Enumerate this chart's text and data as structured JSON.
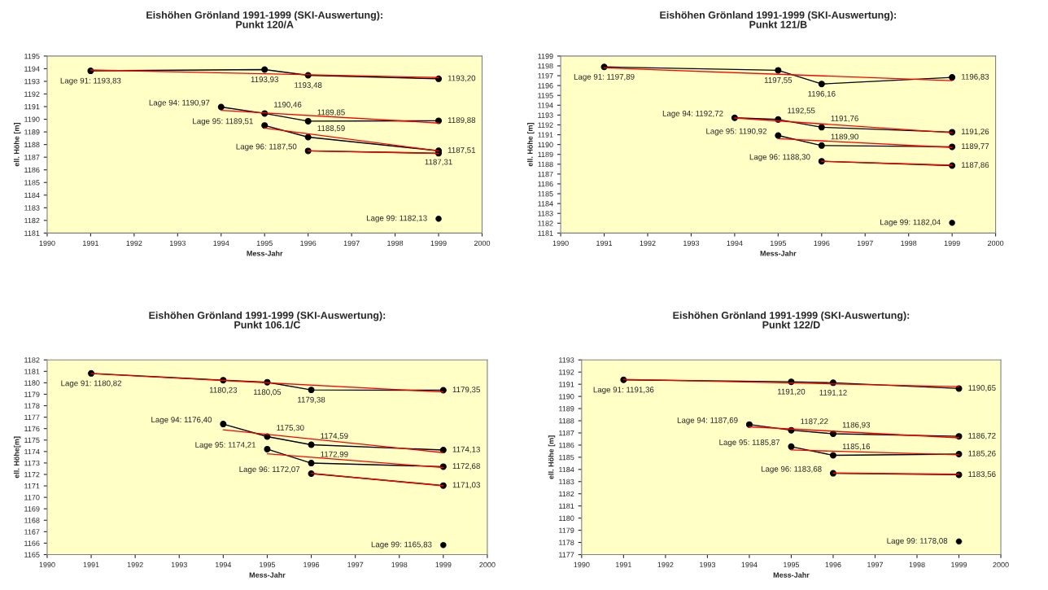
{
  "chart_data": [
    {
      "type": "line",
      "title": "Eishöhen Grönland 1991-1999 (SKI-Auswertung):",
      "subtitle": "Punkt 120/A",
      "xlabel": "Mess-Jahr",
      "ylabel": "ell. Höhe [m]",
      "xlim": [
        1990,
        2000
      ],
      "xticks": [
        1990,
        1991,
        1992,
        1993,
        1994,
        1995,
        1996,
        1997,
        1998,
        1999,
        2000
      ],
      "ylim": [
        1181,
        1195
      ],
      "yticks": [
        1181,
        1182,
        1183,
        1184,
        1185,
        1186,
        1187,
        1188,
        1189,
        1190,
        1191,
        1192,
        1193,
        1194,
        1195
      ],
      "grid": false,
      "series": [
        {
          "color": "#000000",
          "marker": "circle",
          "x": [
            1991,
            1995,
            1996,
            1999
          ],
          "values": [
            1193.83,
            1193.93,
            1193.48,
            1193.2
          ],
          "value_labels": [
            "Lage 91: 1193,83",
            "1193,93",
            "1193,48",
            "1193,20"
          ]
        },
        {
          "color": "#000000",
          "marker": "circle",
          "x": [
            1994,
            1995,
            1996,
            1999
          ],
          "values": [
            1190.97,
            1190.46,
            1189.85,
            1189.88
          ],
          "value_labels": [
            "Lage 94: 1190,97",
            "1190,46",
            "1189,85",
            "1189,88"
          ]
        },
        {
          "color": "#000000",
          "marker": "circle",
          "x": [
            1995,
            1996,
            1999
          ],
          "values": [
            1189.51,
            1188.59,
            1187.51
          ],
          "value_labels": [
            "Lage 95: 1189,51",
            "1188,59",
            "1187,51"
          ]
        },
        {
          "color": "#000000",
          "marker": "circle",
          "x": [
            1996,
            1999
          ],
          "values": [
            1187.5,
            1187.31
          ],
          "value_labels": [
            "Lage 96: 1187,50",
            "1187,31"
          ]
        },
        {
          "type": "scatter",
          "color": "#000000",
          "marker": "circle",
          "x": [
            1999
          ],
          "values": [
            1182.13
          ],
          "value_labels": [
            "Lage 99: 1182,13"
          ]
        },
        {
          "color": "#ff0000",
          "marker": "none",
          "x": [
            1991,
            1999
          ],
          "values": [
            1193.9,
            1193.3
          ]
        },
        {
          "color": "#ff0000",
          "marker": "none",
          "x": [
            1994,
            1999
          ],
          "values": [
            1190.7,
            1189.7
          ]
        },
        {
          "color": "#ff0000",
          "marker": "none",
          "x": [
            1995,
            1999
          ],
          "values": [
            1189.3,
            1187.5
          ]
        },
        {
          "color": "#ff0000",
          "marker": "none",
          "x": [
            1996,
            1999
          ],
          "values": [
            1187.5,
            1187.3
          ]
        }
      ]
    },
    {
      "type": "line",
      "title": "Eishöhen Grönland 1991-1999 (SKI-Auswertung):",
      "subtitle": "Punkt 121/B",
      "xlabel": "Mess-Jahr",
      "ylabel": "ell. Höhe [m]",
      "xlim": [
        1990,
        2000
      ],
      "xticks": [
        1990,
        1991,
        1992,
        1993,
        1994,
        1995,
        1996,
        1997,
        1998,
        1999,
        2000
      ],
      "ylim": [
        1181,
        1199
      ],
      "yticks": [
        1181,
        1182,
        1183,
        1184,
        1185,
        1186,
        1187,
        1188,
        1189,
        1190,
        1191,
        1192,
        1193,
        1194,
        1195,
        1196,
        1197,
        1198,
        1199
      ],
      "grid": false,
      "series": [
        {
          "color": "#000000",
          "marker": "circle",
          "x": [
            1991,
            1995,
            1996,
            1999
          ],
          "values": [
            1197.89,
            1197.55,
            1196.16,
            1196.83
          ],
          "value_labels": [
            "Lage 91: 1197,89",
            "1197,55",
            "1196,16",
            "1196,83"
          ]
        },
        {
          "color": "#000000",
          "marker": "circle",
          "x": [
            1994,
            1995,
            1996,
            1999
          ],
          "values": [
            1192.72,
            1192.55,
            1191.76,
            1191.26
          ],
          "value_labels": [
            "Lage 94: 1192,72",
            "1192,55",
            "1191,76",
            "1191,26"
          ]
        },
        {
          "color": "#000000",
          "marker": "circle",
          "x": [
            1995,
            1996,
            1999
          ],
          "values": [
            1190.92,
            1189.9,
            1189.77
          ],
          "value_labels": [
            "Lage 95: 1190,92",
            "1189,90",
            "1189,77"
          ]
        },
        {
          "color": "#000000",
          "marker": "circle",
          "x": [
            1996,
            1999
          ],
          "values": [
            1188.3,
            1187.86
          ],
          "value_labels": [
            "Lage 96: 1188,30",
            "1187,86"
          ]
        },
        {
          "type": "scatter",
          "color": "#000000",
          "marker": "circle",
          "x": [
            1999
          ],
          "values": [
            1182.04
          ],
          "value_labels": [
            "Lage 99: 1182,04"
          ]
        },
        {
          "color": "#ff0000",
          "marker": "none",
          "x": [
            1991,
            1999
          ],
          "values": [
            1197.8,
            1196.5
          ]
        },
        {
          "color": "#ff0000",
          "marker": "none",
          "x": [
            1994,
            1999
          ],
          "values": [
            1192.7,
            1191.2
          ]
        },
        {
          "color": "#ff0000",
          "marker": "none",
          "x": [
            1995,
            1999
          ],
          "values": [
            1190.6,
            1189.7
          ]
        },
        {
          "color": "#ff0000",
          "marker": "none",
          "x": [
            1996,
            1999
          ],
          "values": [
            1188.3,
            1187.9
          ]
        }
      ]
    },
    {
      "type": "line",
      "title": "Eishöhen Grönland 1991-1999 (SKI-Auswertung):",
      "subtitle": "Punkt 106.1/C",
      "xlabel": "Mess-Jahr",
      "ylabel": "ell. Höhe[m]",
      "xlim": [
        1990,
        2000
      ],
      "xticks": [
        1990,
        1991,
        1992,
        1993,
        1994,
        1995,
        1996,
        1997,
        1998,
        1999,
        2000
      ],
      "ylim": [
        1165,
        1182
      ],
      "yticks": [
        1165,
        1166,
        1167,
        1168,
        1169,
        1170,
        1171,
        1172,
        1173,
        1174,
        1175,
        1176,
        1177,
        1178,
        1179,
        1180,
        1181,
        1182
      ],
      "grid": false,
      "series": [
        {
          "color": "#000000",
          "marker": "circle",
          "x": [
            1991,
            1994,
            1995,
            1996,
            1999
          ],
          "values": [
            1180.82,
            1180.23,
            1180.05,
            1179.38,
            1179.35
          ],
          "value_labels": [
            "Lage 91: 1180,82",
            "1180,23",
            "1180,05",
            "1179,38",
            "1179,35"
          ]
        },
        {
          "color": "#000000",
          "marker": "circle",
          "x": [
            1994,
            1995,
            1996,
            1999
          ],
          "values": [
            1176.4,
            1175.3,
            1174.59,
            1174.13
          ],
          "value_labels": [
            "Lage 94: 1176,40",
            "1175,30",
            "1174,59",
            "1174,13"
          ]
        },
        {
          "color": "#000000",
          "marker": "circle",
          "x": [
            1995,
            1996,
            1999
          ],
          "values": [
            1174.21,
            1172.99,
            1172.68
          ],
          "value_labels": [
            "Lage 95: 1174,21",
            "1172,99",
            "1172,68"
          ]
        },
        {
          "color": "#000000",
          "marker": "circle",
          "x": [
            1996,
            1999
          ],
          "values": [
            1172.07,
            1171.03
          ],
          "value_labels": [
            "Lage 96: 1172,07",
            "1171,03"
          ]
        },
        {
          "type": "scatter",
          "color": "#000000",
          "marker": "circle",
          "x": [
            1999
          ],
          "values": [
            1165.83
          ],
          "value_labels": [
            "Lage 99: 1165,83"
          ]
        },
        {
          "color": "#ff0000",
          "marker": "none",
          "x": [
            1991,
            1999
          ],
          "values": [
            1180.8,
            1179.2
          ]
        },
        {
          "color": "#ff0000",
          "marker": "none",
          "x": [
            1994,
            1999
          ],
          "values": [
            1175.9,
            1173.9
          ]
        },
        {
          "color": "#ff0000",
          "marker": "none",
          "x": [
            1995,
            1999
          ],
          "values": [
            1173.8,
            1172.6
          ]
        },
        {
          "color": "#ff0000",
          "marker": "none",
          "x": [
            1996,
            1999
          ],
          "values": [
            1172.1,
            1171.0
          ]
        }
      ]
    },
    {
      "type": "line",
      "title": "Eishöhen Grönland 1991-1999 (SKI-Auswertung):",
      "subtitle": "Punkt 122/D",
      "xlabel": "Mess-Jahr",
      "ylabel": "ell. Höhe [m]",
      "xlim": [
        1990,
        2000
      ],
      "xticks": [
        1990,
        1991,
        1992,
        1993,
        1994,
        1995,
        1996,
        1997,
        1998,
        1999,
        2000
      ],
      "ylim": [
        1177,
        1193
      ],
      "yticks": [
        1177,
        1178,
        1179,
        1180,
        1181,
        1182,
        1183,
        1184,
        1185,
        1186,
        1187,
        1188,
        1189,
        1190,
        1191,
        1192,
        1193
      ],
      "grid": false,
      "series": [
        {
          "color": "#000000",
          "marker": "circle",
          "x": [
            1991,
            1995,
            1996,
            1999
          ],
          "values": [
            1191.36,
            1191.2,
            1191.12,
            1190.65
          ],
          "value_labels": [
            "Lage 91: 1191,36",
            "1191,20",
            "1191,12",
            "1190,65"
          ]
        },
        {
          "color": "#000000",
          "marker": "circle",
          "x": [
            1994,
            1995,
            1996,
            1999
          ],
          "values": [
            1187.69,
            1187.22,
            1186.93,
            1186.72
          ],
          "value_labels": [
            "Lage 94: 1187,69",
            "1187,22",
            "1186,93",
            "1186,72"
          ]
        },
        {
          "color": "#000000",
          "marker": "circle",
          "x": [
            1995,
            1996,
            1999
          ],
          "values": [
            1185.87,
            1185.16,
            1185.26
          ],
          "value_labels": [
            "Lage 95: 1185,87",
            "1185,16",
            "1185,26"
          ]
        },
        {
          "color": "#000000",
          "marker": "circle",
          "x": [
            1996,
            1999
          ],
          "values": [
            1183.68,
            1183.56
          ],
          "value_labels": [
            "Lage 96: 1183,68",
            "1183,56"
          ]
        },
        {
          "type": "scatter",
          "color": "#000000",
          "marker": "circle",
          "x": [
            1999
          ],
          "values": [
            1178.08
          ],
          "value_labels": [
            "Lage 99: 1178,08"
          ]
        },
        {
          "color": "#ff0000",
          "marker": "none",
          "x": [
            1991,
            1999
          ],
          "values": [
            1191.4,
            1190.8
          ]
        },
        {
          "color": "#ff0000",
          "marker": "none",
          "x": [
            1994,
            1999
          ],
          "values": [
            1187.5,
            1186.6
          ]
        },
        {
          "color": "#ff0000",
          "marker": "none",
          "x": [
            1995,
            1999
          ],
          "values": [
            1185.6,
            1185.2
          ]
        },
        {
          "color": "#ff0000",
          "marker": "none",
          "x": [
            1996,
            1999
          ],
          "values": [
            1183.7,
            1183.6
          ]
        }
      ]
    }
  ]
}
